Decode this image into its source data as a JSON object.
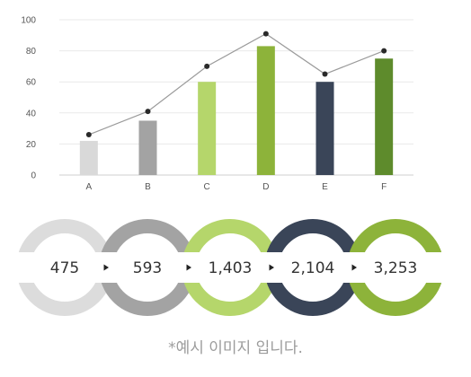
{
  "chart_data": [
    {
      "type": "bar",
      "categories": [
        "A",
        "B",
        "C",
        "D",
        "E",
        "F"
      ],
      "values": [
        22,
        35,
        60,
        83,
        60,
        75
      ],
      "bar_colors": [
        "#d9d9d9",
        "#a3a3a3",
        "#b5d66b",
        "#8db33a",
        "#3a4558",
        "#5e8b2c"
      ],
      "line_series": [
        26,
        41,
        70,
        91,
        65,
        80
      ],
      "line_color": "#9a9a9a",
      "dot_color": "#2a2a2a",
      "ylim": [
        0,
        100
      ],
      "yticks": [
        0,
        20,
        40,
        60,
        80,
        100
      ],
      "grid": true
    },
    {
      "type": "other",
      "values": [
        "475",
        "593",
        "1,403",
        "2,104",
        "3,253"
      ],
      "ring_colors": [
        "#dcdcdc",
        "#a3a3a3",
        "#b5d66b",
        "#3a4558",
        "#8db33a"
      ]
    }
  ],
  "caption": "*예시 이미지 입니다."
}
